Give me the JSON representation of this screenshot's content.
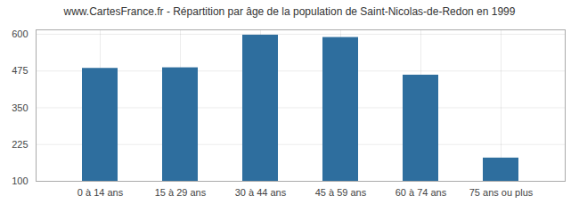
{
  "chart_data": {
    "type": "bar",
    "title": "www.CartesFrance.fr - Répartition par âge de la population de Saint-Nicolas-de-Redon en 1999",
    "categories": [
      "0 à 14 ans",
      "15 à 29 ans",
      "30 à 44 ans",
      "45 à 59 ans",
      "60 à 74 ans",
      "75 ans ou plus"
    ],
    "values": [
      484,
      486,
      597,
      589,
      461,
      179
    ],
    "color": "#2e6e9e",
    "ylim": [
      100,
      615
    ],
    "yticks": [
      100,
      225,
      350,
      475,
      600
    ],
    "grid": true
  }
}
